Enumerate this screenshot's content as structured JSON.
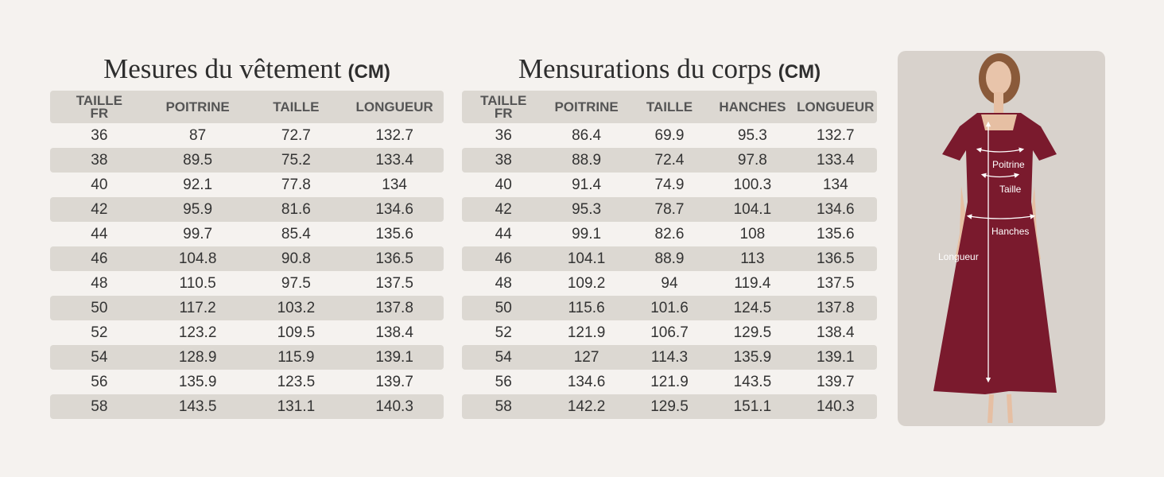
{
  "tables": [
    {
      "title": "Mesures du vêtement",
      "unit": "(CM)",
      "headers": [
        "TAILLE FR",
        "POITRINE",
        "TAILLE",
        "LONGUEUR"
      ],
      "rows": [
        [
          36,
          87,
          72.7,
          132.7
        ],
        [
          38,
          89.5,
          75.2,
          133.4
        ],
        [
          40,
          92.1,
          77.8,
          134
        ],
        [
          42,
          95.9,
          81.6,
          134.6
        ],
        [
          44,
          99.7,
          85.4,
          135.6
        ],
        [
          46,
          104.8,
          90.8,
          136.5
        ],
        [
          48,
          110.5,
          97.5,
          137.5
        ],
        [
          50,
          117.2,
          103.2,
          137.8
        ],
        [
          52,
          123.2,
          109.5,
          138.4
        ],
        [
          54,
          128.9,
          115.9,
          139.1
        ],
        [
          56,
          135.9,
          123.5,
          139.7
        ],
        [
          58,
          143.5,
          131.1,
          140.3
        ]
      ]
    },
    {
      "title": "Mensurations du corps",
      "unit": "(CM)",
      "headers": [
        "TAILLE FR",
        "POITRINE",
        "TAILLE",
        "HANCHES",
        "LONGUEUR"
      ],
      "rows": [
        [
          36,
          86.4,
          69.9,
          95.3,
          132.7
        ],
        [
          38,
          88.9,
          72.4,
          97.8,
          133.4
        ],
        [
          40,
          91.4,
          74.9,
          100.3,
          134
        ],
        [
          42,
          95.3,
          78.7,
          104.1,
          134.6
        ],
        [
          44,
          99.1,
          82.6,
          108,
          135.6
        ],
        [
          46,
          104.1,
          88.9,
          113,
          136.5
        ],
        [
          48,
          109.2,
          94,
          119.4,
          137.5
        ],
        [
          50,
          115.6,
          101.6,
          124.5,
          137.8
        ],
        [
          52,
          121.9,
          106.7,
          129.5,
          138.4
        ],
        [
          54,
          127,
          114.3,
          135.9,
          139.1
        ],
        [
          56,
          134.6,
          121.9,
          143.5,
          139.7
        ],
        [
          58,
          142.2,
          129.5,
          151.1,
          140.3
        ]
      ]
    }
  ],
  "figure": {
    "labels": {
      "chest": "Poitrine",
      "waist": "Taille",
      "hips": "Hanches",
      "length": "Longueur"
    }
  }
}
